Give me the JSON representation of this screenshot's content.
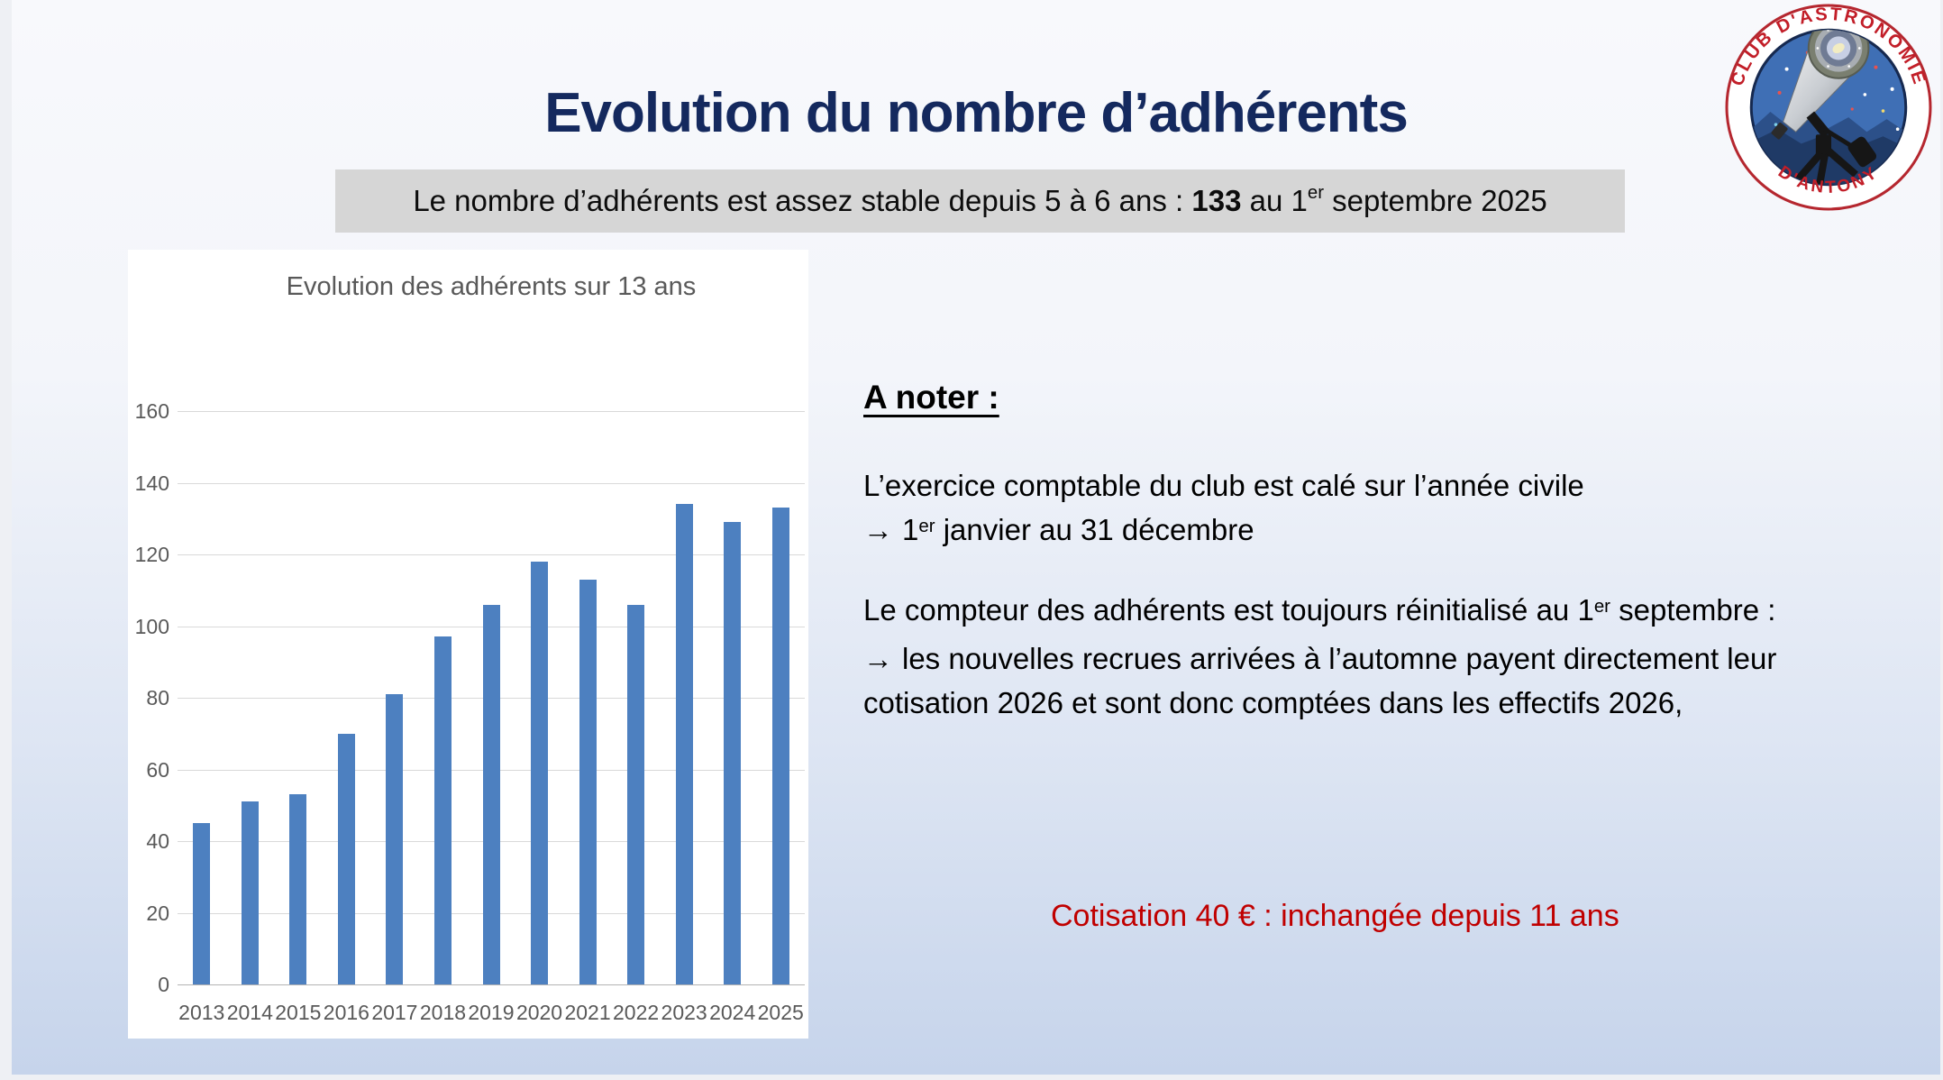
{
  "slide": {
    "title": "Evolution du nombre d’adhérents",
    "banner": {
      "prefix": "Le nombre d’adhérents est assez stable depuis 5 à 6 ans : ",
      "count": "133",
      "mid": " au 1",
      "sup": "er",
      "suffix": " septembre 2025"
    }
  },
  "logo": {
    "top_text": "CLUB D'ASTRONOMIE",
    "bottom_text": "D'ANTONY"
  },
  "chart_data": {
    "type": "bar",
    "title": "Evolution des adhérents sur 13 ans",
    "categories": [
      "2013",
      "2014",
      "2015",
      "2016",
      "2017",
      "2018",
      "2019",
      "2020",
      "2021",
      "2022",
      "2023",
      "2024",
      "2025"
    ],
    "values": [
      45,
      51,
      53,
      70,
      81,
      97,
      106,
      118,
      113,
      106,
      134,
      129,
      133
    ],
    "xlabel": "",
    "ylabel": "",
    "ylim": [
      0,
      160
    ],
    "ytick_step": 20,
    "grid": true,
    "legend": "none",
    "bar_color": "#4d80c0"
  },
  "notes": {
    "heading": "A noter :",
    "arrow": "→",
    "p1_line1": "L’exercice comptable du club est calé sur l’année civile",
    "p1_line2_pre": "1",
    "p1_line2_sup": "er",
    "p1_line2_post": " janvier au 31 décembre",
    "p2_line1_pre": "Le compteur des adhérents est toujours réinitialisé au 1",
    "p2_line1_sup": "er",
    "p2_line1_post": " septembre :",
    "p2_line2": "les nouvelles recrues arrivées à l’automne payent directement leur",
    "p2_line3": "cotisation 2026 et sont donc comptées dans les effectifs 2026,",
    "cotisation": "Cotisation 40 € : inchangée depuis 11 ans"
  }
}
